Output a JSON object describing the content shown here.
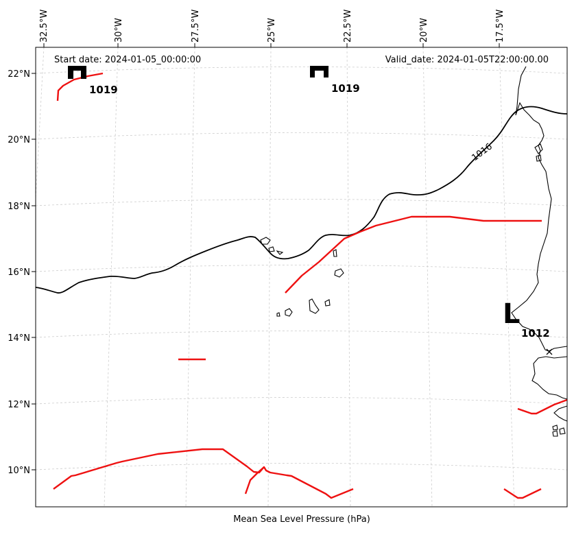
{
  "header": {
    "start_date": "Start date: 2024-01-05_00:00:00",
    "valid_date": "Valid_date: 2024-01-05T22:00:00.00"
  },
  "caption": "Mean Sea Level Pressure (hPa)",
  "lon_ticks": [
    "32.5°W",
    "30°W",
    "27.5°W",
    "25°W",
    "22.5°W",
    "20°W",
    "17.5°W"
  ],
  "lat_ticks": [
    "22°N",
    "20°N",
    "18°N",
    "16°N",
    "14°N",
    "12°N",
    "10°N"
  ],
  "pressure_systems": [
    {
      "type": "high",
      "symbol": "H",
      "value": "1019",
      "lon": -31.1,
      "lat": 22.0
    },
    {
      "type": "high",
      "symbol": "H",
      "value": "1019",
      "lon": -23.2,
      "lat": 22.0
    },
    {
      "type": "low",
      "symbol": "L",
      "value": "1012",
      "lon": -17.4,
      "lat": 14.6
    }
  ],
  "isobar_labels": [
    {
      "value": "1016"
    }
  ],
  "colors": {
    "isobar": "#000000",
    "front": "#ee1111",
    "coastline": "#000000",
    "grid": "#cccccc"
  }
}
